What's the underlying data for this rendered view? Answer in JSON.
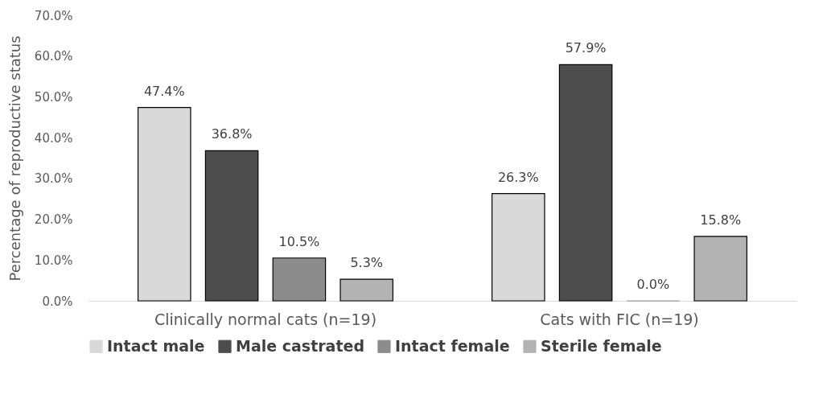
{
  "chart_data": {
    "type": "bar",
    "ylabel": "Percentage of reproductive status",
    "categories": [
      "Clinically normal cats (n=19)",
      "Cats with FIC (n=19)"
    ],
    "series": [
      {
        "name": "Intact male",
        "color": "#d9d9d9",
        "values": [
          47.4,
          26.3
        ],
        "value_labels": [
          "47.4%",
          "26.3%"
        ]
      },
      {
        "name": "Male castrated",
        "color": "#4d4d4d",
        "values": [
          36.8,
          57.9
        ],
        "value_labels": [
          "36.8%",
          "57.9%"
        ]
      },
      {
        "name": "Intact female",
        "color": "#8c8c8c",
        "values": [
          10.5,
          0.0
        ],
        "value_labels": [
          "10.5%",
          "0.0%"
        ]
      },
      {
        "name": "Sterile female",
        "color": "#b3b3b3",
        "values": [
          5.3,
          15.8
        ],
        "value_labels": [
          "5.3%",
          "15.8%"
        ]
      }
    ],
    "ylim": [
      0,
      70
    ],
    "yticks": [
      {
        "value": 0,
        "label": "0.0%"
      },
      {
        "value": 10,
        "label": "10.0%"
      },
      {
        "value": 20,
        "label": "20.0%"
      },
      {
        "value": 30,
        "label": "30.0%"
      },
      {
        "value": 40,
        "label": "40.0%"
      },
      {
        "value": 50,
        "label": "50.0%"
      },
      {
        "value": 60,
        "label": "60.0%"
      },
      {
        "value": 70,
        "label": "70.0%"
      }
    ],
    "grid": false,
    "legend": "bottom"
  }
}
